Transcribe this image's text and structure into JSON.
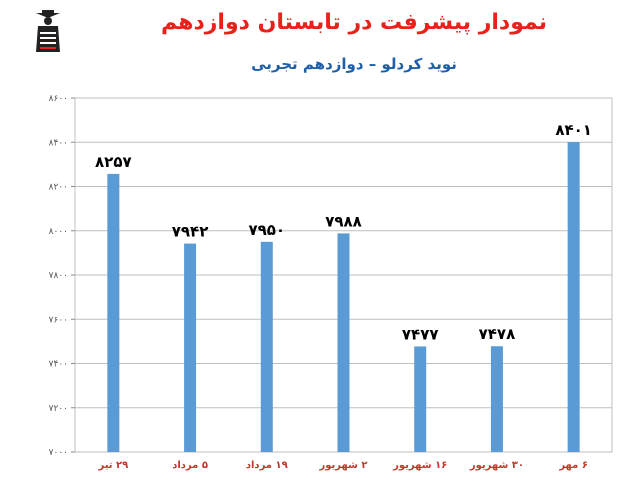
{
  "header": {
    "title": "نمودار پیشرفت در تابستان دوازدهم",
    "subtitle": "نوید کردلو – دوازدهم تجربی"
  },
  "logo": {
    "icon": "graduate-student-logo"
  },
  "colors": {
    "bar": "#5b9bd5",
    "axis_text": "#555555",
    "category_text": "#c0392b",
    "value_text": "#000000",
    "grid": "#bfbfbf"
  },
  "chart_data": {
    "type": "bar",
    "title": "نمودار پیشرفت در تابستان دوازدهم",
    "subtitle": "نوید کردلو – دوازدهم تجربی",
    "categories": [
      "۲۹ تیر",
      "۵ مرداد",
      "۱۹ مرداد",
      "۲ شهریور",
      "۱۶ شهریور",
      "۳۰ شهریور",
      "۶ مهر"
    ],
    "values": [
      8257,
      7942,
      7950,
      7988,
      7477,
      7478,
      8401
    ],
    "value_labels": [
      "۸۲۵۷",
      "۷۹۴۲",
      "۷۹۵۰",
      "۷۹۸۸",
      "۷۴۷۷",
      "۷۴۷۸",
      "۸۴۰۱"
    ],
    "ylim": [
      7000,
      8600
    ],
    "yticks": [
      7000,
      7200,
      7400,
      7600,
      7800,
      8000,
      8200,
      8400,
      8600
    ],
    "ytick_labels": [
      "۷۰۰۰",
      "۷۲۰۰",
      "۷۴۰۰",
      "۷۶۰۰",
      "۷۸۰۰",
      "۸۰۰۰",
      "۸۲۰۰",
      "۸۴۰۰",
      "۸۶۰۰"
    ],
    "grid": true,
    "legend": "none"
  }
}
